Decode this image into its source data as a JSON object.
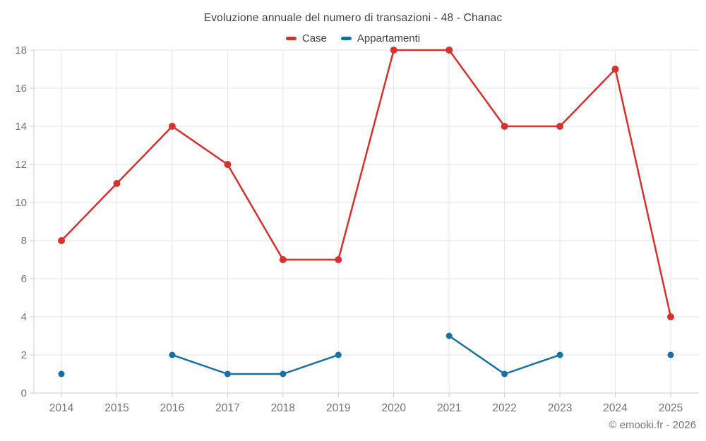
{
  "title": "Evoluzione annuale del numero di transazioni - 48 - Chanac",
  "legend": [
    {
      "label": "Case",
      "color": "#d7312e"
    },
    {
      "label": "Appartamenti",
      "color": "#1470a6"
    }
  ],
  "footer": "© emooki.fr - 2026",
  "colors": {
    "grid": "#e6e6e6",
    "axis": "#cccccc",
    "tick_label": "#757575",
    "title_text": "#424242"
  },
  "chart_data": {
    "type": "line",
    "title": "Evoluzione annuale del numero di transazioni - 48 - Chanac",
    "x": [
      2014,
      2015,
      2016,
      2017,
      2018,
      2019,
      2020,
      2021,
      2022,
      2023,
      2024,
      2025
    ],
    "series": [
      {
        "name": "Case",
        "color": "#d7312e",
        "values": [
          8,
          11,
          14,
          12,
          7,
          7,
          18,
          18,
          14,
          14,
          17,
          4
        ]
      },
      {
        "name": "Appartamenti",
        "color": "#1470a6",
        "values": [
          1,
          null,
          2,
          1,
          1,
          2,
          null,
          3,
          1,
          2,
          null,
          2
        ]
      }
    ],
    "xlabel": "",
    "ylabel": "",
    "ylim": [
      0,
      18
    ],
    "ytick_step": 2,
    "grid": true,
    "legend_position": "top"
  }
}
